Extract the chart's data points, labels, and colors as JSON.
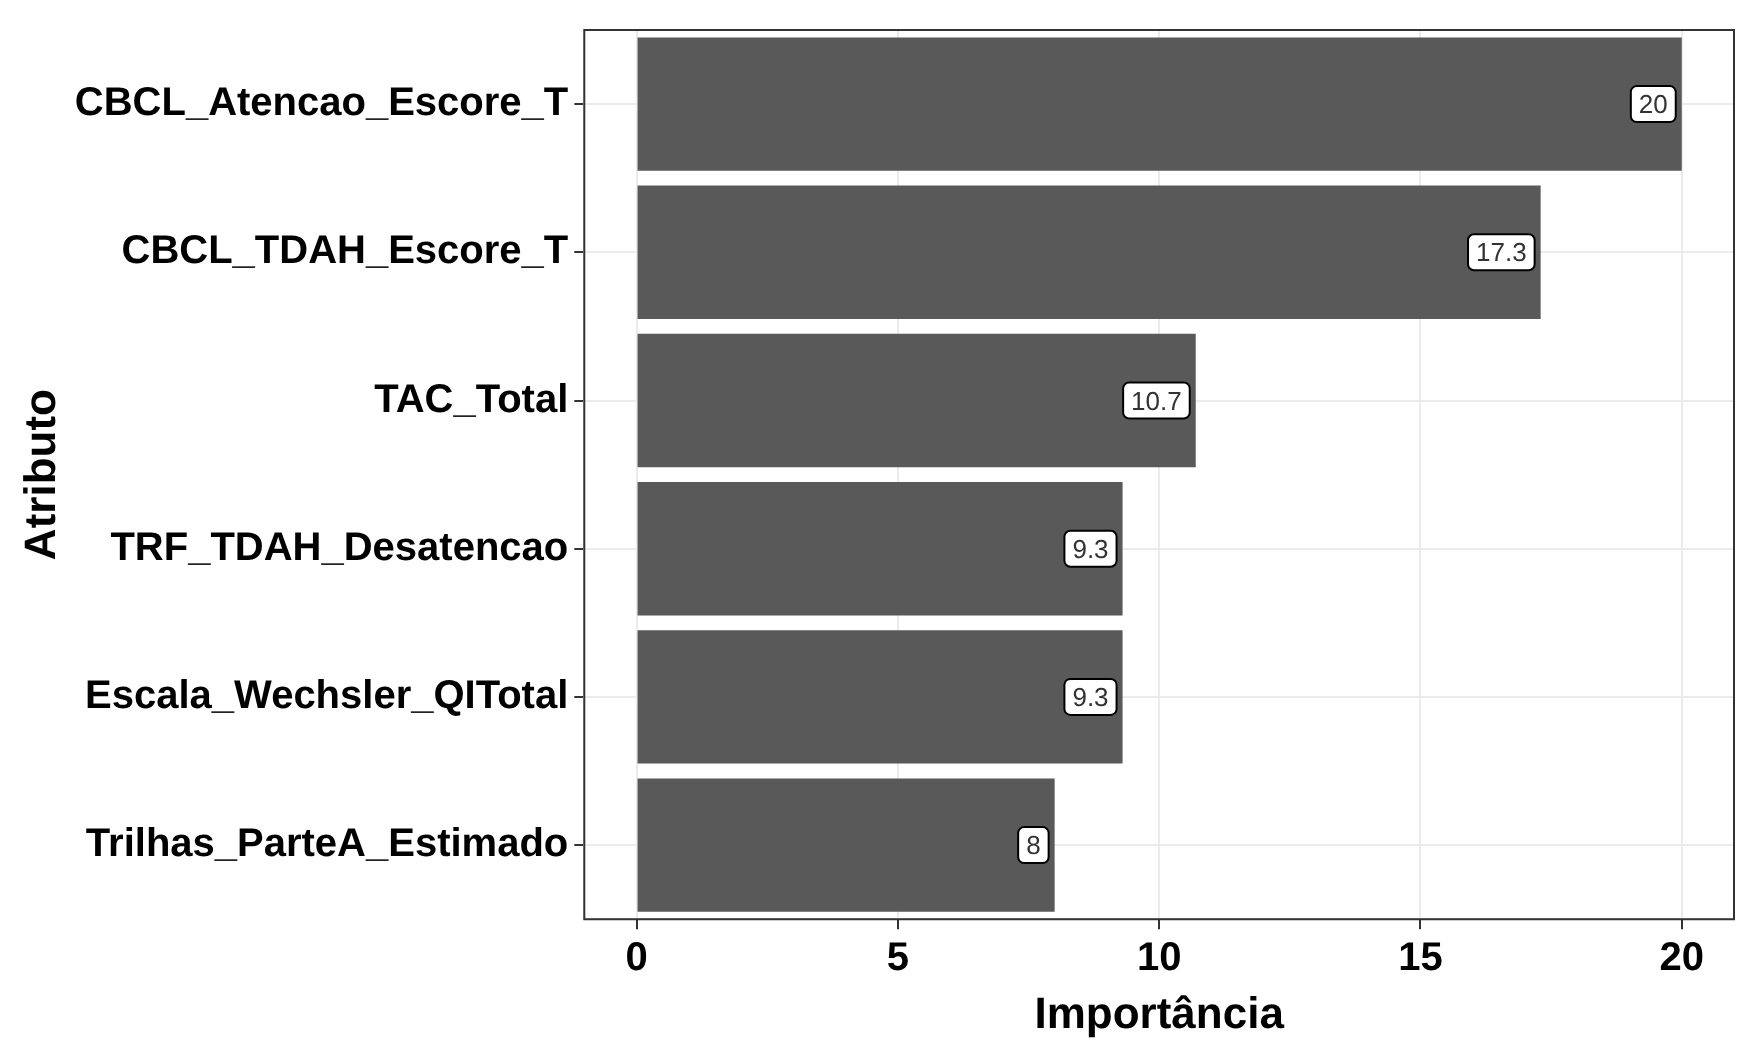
{
  "chart_data": {
    "type": "bar",
    "orientation": "horizontal",
    "xlabel": "Importância",
    "ylabel": "Atributo",
    "categories": [
      "CBCL_Atencao_Escore_T",
      "CBCL_TDAH_Escore_T",
      "TAC_Total",
      "TRF_TDAH_Desatencao",
      "Escala_Wechsler_QITotal",
      "Trilhas_ParteA_Estimado"
    ],
    "values": [
      20,
      17.3,
      10.7,
      9.3,
      9.3,
      8
    ],
    "color": "#595959",
    "xlim": [
      -1,
      21
    ],
    "xticks": [
      0,
      5,
      10,
      15,
      20
    ],
    "grid": true,
    "legend": false,
    "data_labels": true
  }
}
